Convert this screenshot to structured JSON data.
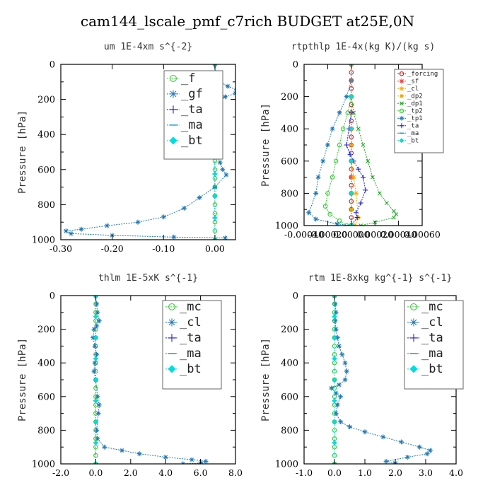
{
  "title": "cam144_lscale_pmf_c7rich  BUDGET at25E,0N",
  "chart_data": [
    {
      "type": "line",
      "title": "um  1E-4xm s^{-2}",
      "ylabel": "Pressure [hPa]",
      "xlim": [
        -0.3,
        0.04
      ],
      "ylim": [
        1000,
        0
      ],
      "xticks": [
        "-0.30",
        "-0.20",
        "-0.10",
        "0.00"
      ],
      "xtick_values": [
        -0.3,
        -0.2,
        -0.1,
        0.0
      ],
      "yticks": [
        "0",
        "200",
        "400",
        "600",
        "800",
        "1000"
      ],
      "legend_position": "top-right",
      "series": [
        {
          "name": "_f",
          "color": "#33cc33",
          "marker": "circle",
          "x": [
            0.0,
            0.0,
            0.0,
            0.0,
            0.0,
            0.0,
            0.0,
            0.0,
            0.0,
            0.0,
            0.0,
            0.0,
            0.0,
            0.0,
            0.0,
            0.0,
            0.0,
            0.0,
            0.0,
            0.0,
            0.0
          ],
          "y": [
            0,
            50,
            100,
            150,
            200,
            250,
            300,
            350,
            400,
            450,
            500,
            550,
            600,
            650,
            700,
            750,
            800,
            850,
            900,
            950,
            1000
          ]
        },
        {
          "name": "_gf",
          "color": "#1f77b4",
          "marker": "star",
          "x": [
            0.0,
            0.002,
            0.01,
            0.025,
            0.042,
            0.04,
            0.02,
            0.005,
            -0.015,
            -0.012,
            -0.008,
            -0.004,
            0.002,
            0.01,
            0.015,
            0.022,
            0.0,
            -0.03,
            -0.06,
            -0.1,
            -0.15,
            -0.21,
            -0.26,
            -0.29,
            -0.28,
            -0.2,
            -0.08,
            0.02
          ],
          "y": [
            0,
            50,
            100,
            125,
            145,
            165,
            185,
            205,
            230,
            290,
            350,
            420,
            490,
            560,
            600,
            630,
            700,
            760,
            820,
            870,
            900,
            920,
            940,
            950,
            965,
            975,
            985,
            990
          ]
        },
        {
          "name": "_ta",
          "color": "#2222cc",
          "marker": "plus",
          "x": [
            0.0,
            0.0,
            0.0,
            0.0,
            0.0,
            0.0,
            0.0,
            0.0,
            0.0
          ],
          "y": [
            0,
            125,
            250,
            375,
            500,
            625,
            750,
            875,
            1000
          ]
        },
        {
          "name": "_ma",
          "color": "#1199cc",
          "marker": "dash",
          "x": [
            0.0,
            0.0,
            0.0,
            0.0,
            0.0,
            0.0,
            0.0,
            0.0,
            0.0
          ],
          "y": [
            0,
            125,
            250,
            375,
            500,
            625,
            750,
            875,
            1000
          ]
        },
        {
          "name": "_bt",
          "color": "#00dddd",
          "marker": "diamond",
          "x": [
            0.0,
            0.0,
            0.0,
            0.0,
            0.0,
            0.0,
            0.0,
            0.0,
            0.0
          ],
          "y": [
            0,
            125,
            250,
            375,
            500,
            625,
            750,
            875,
            1000
          ]
        }
      ]
    },
    {
      "type": "line",
      "title": "rtpthlp  1E-4x(kg K)/(kg s)",
      "ylabel": "Pressure [hPa]",
      "xlim": [
        -0.0004,
        0.0006
      ],
      "ylim": [
        1000,
        0
      ],
      "xticks": [
        "-0.00040",
        "-0.00020",
        "0.00000",
        "0.00020",
        "0.00040",
        "0.00060"
      ],
      "xtick_values": [
        -0.0004,
        -0.0002,
        0.0,
        0.0002,
        0.0004,
        0.0006
      ],
      "yticks": [
        "0",
        "200",
        "400",
        "600",
        "800",
        "1000"
      ],
      "legend_position": "top-right",
      "series": [
        {
          "name": "_forcing",
          "color": "#cc2222",
          "marker": "circle",
          "x": [
            0.0,
            0.0,
            0.0,
            0.0,
            0.0,
            0.0,
            0.0,
            0.0,
            0.0,
            0.0,
            0.0,
            0.0,
            0.0,
            0.0,
            0.0,
            0.0,
            0.0,
            0.0,
            0.0,
            0.0,
            0.0
          ],
          "y": [
            0,
            50,
            100,
            150,
            200,
            250,
            300,
            350,
            400,
            450,
            500,
            550,
            600,
            650,
            700,
            750,
            800,
            850,
            900,
            950,
            1000
          ]
        },
        {
          "name": "_sf",
          "color": "#ff3333",
          "marker": "star",
          "x": [
            0.0,
            0.0,
            0.0,
            0.0,
            0.0,
            0.0,
            0.0,
            0.0,
            0.0,
            0.0,
            0.0
          ],
          "y": [
            0,
            100,
            200,
            300,
            400,
            500,
            600,
            700,
            800,
            900,
            1000
          ]
        },
        {
          "name": "_cl",
          "color": "#ffaa00",
          "marker": "star",
          "x": [
            0.0,
            0.0,
            0.0,
            0.0,
            0.0,
            0.0,
            0.0,
            2e-05,
            4e-05,
            6e-05,
            3e-05
          ],
          "y": [
            0,
            100,
            200,
            300,
            400,
            500,
            600,
            700,
            800,
            950,
            1000
          ]
        },
        {
          "name": "_dp2",
          "color": "#eeaa00",
          "marker": "square",
          "x": [
            0.0,
            0.0,
            0.0,
            0.0,
            0.0,
            0.0,
            0.0
          ],
          "y": [
            0,
            200,
            400,
            600,
            800,
            900,
            1000
          ]
        },
        {
          "name": "_dp1",
          "color": "#22aa22",
          "marker": "cross",
          "x": [
            0.0,
            2e-05,
            6e-05,
            0.0001,
            0.00014,
            0.00018,
            0.00024,
            0.0003,
            0.00036,
            0.00038,
            0.00036,
            0.0002,
            8e-05
          ],
          "y": [
            200,
            300,
            400,
            500,
            600,
            700,
            800,
            860,
            910,
            930,
            950,
            980,
            1000
          ]
        },
        {
          "name": "_tp2",
          "color": "#33cc33",
          "marker": "circle",
          "x": [
            0.0,
            -3e-05,
            -7e-05,
            -0.0001,
            -0.00013,
            -0.00016,
            -0.0002,
            -0.00022,
            -0.00018,
            -0.0001,
            -4e-05
          ],
          "y": [
            200,
            300,
            400,
            500,
            600,
            700,
            800,
            880,
            930,
            970,
            1000
          ]
        },
        {
          "name": "_tp1",
          "color": "#1f77b4",
          "marker": "star",
          "x": [
            0.0,
            -4e-05,
            -0.0001,
            -0.00016,
            -0.0002,
            -0.00024,
            -0.00028,
            -0.0003,
            -0.00036,
            -0.0003,
            -0.00012,
            0.0
          ],
          "y": [
            100,
            200,
            300,
            400,
            500,
            600,
            700,
            800,
            920,
            960,
            990,
            1000
          ]
        },
        {
          "name": "_ta",
          "color": "#2222cc",
          "marker": "plus",
          "x": [
            0.0,
            -2e-05,
            -4e-05,
            -1e-05,
            2e-05,
            6e-05,
            0.0001,
            0.00012,
            8e-05,
            4e-05,
            5e-05,
            0.0
          ],
          "y": [
            300,
            400,
            500,
            560,
            600,
            650,
            700,
            780,
            860,
            920,
            950,
            1000
          ]
        },
        {
          "name": "_ma",
          "color": "#1199cc",
          "marker": "dash",
          "x": [
            0.0,
            0.0,
            0.0,
            0.0,
            0.0,
            0.0
          ],
          "y": [
            0,
            200,
            400,
            600,
            800,
            1000
          ]
        },
        {
          "name": "_bt",
          "color": "#00dddd",
          "marker": "diamond",
          "x": [
            0.0,
            0.0,
            0.0,
            0.0,
            0.0,
            0.0
          ],
          "y": [
            0,
            200,
            400,
            600,
            800,
            1000
          ]
        }
      ]
    },
    {
      "type": "line",
      "title": "thlm  1E-5xK s^{-1}",
      "ylabel": "Pressure [hPa]",
      "xlim": [
        -2.0,
        8.0
      ],
      "ylim": [
        1000,
        0
      ],
      "xticks": [
        "-2.0",
        "0.0",
        "2.0",
        "4.0",
        "6.0",
        "8.0"
      ],
      "xtick_values": [
        -2,
        0,
        2,
        4,
        6,
        8
      ],
      "yticks": [
        "0",
        "200",
        "400",
        "600",
        "800",
        "1000"
      ],
      "legend_position": "top-right",
      "series": [
        {
          "name": "_mc",
          "color": "#33cc33",
          "marker": "circle",
          "x": [
            0.0,
            0.0,
            0.0,
            0.0,
            0.0,
            0.0,
            0.0,
            0.0,
            0.0,
            0.0,
            0.0,
            0.0,
            0.0,
            0.0,
            0.0,
            0.0,
            0.0,
            0.0,
            0.0,
            0.0,
            0.0
          ],
          "y": [
            0,
            50,
            100,
            150,
            200,
            250,
            300,
            350,
            400,
            450,
            500,
            550,
            600,
            650,
            700,
            750,
            800,
            850,
            900,
            950,
            1000
          ]
        },
        {
          "name": "_cl",
          "color": "#1f77b4",
          "marker": "star",
          "x": [
            0.0,
            0.05,
            0.1,
            0.2,
            0.05,
            -0.1,
            -0.15,
            -0.05,
            0.05,
            -0.05,
            -0.1,
            0.0,
            0.1,
            0.2,
            0.15,
            0.05,
            0.1,
            0.5,
            1.5,
            2.5,
            4.0,
            5.5,
            6.3,
            6.0,
            5.0
          ],
          "y": [
            0,
            50,
            100,
            150,
            180,
            200,
            250,
            300,
            350,
            400,
            450,
            500,
            600,
            650,
            700,
            800,
            850,
            900,
            920,
            940,
            960,
            975,
            985,
            995,
            1000
          ]
        },
        {
          "name": "_ta",
          "color": "#2222cc",
          "marker": "plus",
          "x": [
            0.0,
            0.0,
            0.0,
            0.0,
            0.0,
            0.0,
            0.0,
            0.0,
            0.0
          ],
          "y": [
            0,
            125,
            250,
            375,
            500,
            625,
            750,
            875,
            1000
          ]
        },
        {
          "name": "_ma",
          "color": "#1199cc",
          "marker": "dash",
          "x": [
            0.0,
            0.0,
            0.0,
            0.0,
            0.0,
            0.0,
            0.0,
            0.0,
            0.0
          ],
          "y": [
            0,
            125,
            250,
            375,
            500,
            625,
            750,
            875,
            1000
          ]
        },
        {
          "name": "_bt",
          "color": "#00dddd",
          "marker": "diamond",
          "x": [
            0.0,
            0.0,
            0.0,
            0.0,
            0.0,
            0.0,
            0.0,
            0.0,
            0.0
          ],
          "y": [
            0,
            125,
            250,
            375,
            500,
            625,
            750,
            875,
            1000
          ]
        }
      ]
    },
    {
      "type": "line",
      "title": "rtm  1E-8xkg kg^{-1} s^{-1}",
      "ylabel": "Pressure [hPa]",
      "xlim": [
        -1.0,
        4.0
      ],
      "ylim": [
        1000,
        0
      ],
      "xticks": [
        "-1.0",
        "0.0",
        "1.0",
        "2.0",
        "3.0",
        "4.0"
      ],
      "xtick_values": [
        -1,
        0,
        1,
        2,
        3,
        4
      ],
      "yticks": [
        "0",
        "200",
        "400",
        "600",
        "800",
        "1000"
      ],
      "legend_position": "top-right",
      "series": [
        {
          "name": "_mc",
          "color": "#33cc33",
          "marker": "circle",
          "x": [
            0.0,
            0.0,
            0.0,
            0.0,
            0.0,
            0.0,
            0.0,
            0.0,
            0.0,
            0.0,
            0.0,
            0.0,
            0.0,
            0.0,
            0.0,
            0.0,
            0.0,
            0.0,
            0.0,
            0.0,
            0.0
          ],
          "y": [
            0,
            50,
            100,
            150,
            200,
            250,
            300,
            350,
            400,
            450,
            500,
            550,
            600,
            650,
            700,
            750,
            800,
            850,
            900,
            950,
            1000
          ]
        },
        {
          "name": "_cl",
          "color": "#1f77b4",
          "marker": "star",
          "x": [
            0.0,
            0.02,
            0.05,
            0.02,
            0.05,
            0.1,
            0.15,
            0.25,
            0.35,
            0.4,
            0.35,
            0.15,
            -0.1,
            0.05,
            0.2,
            0.1,
            0.05,
            0.2,
            0.5,
            1.0,
            1.6,
            2.2,
            2.8,
            3.15,
            3.05,
            2.4,
            1.7,
            2.0
          ],
          "y": [
            0,
            50,
            100,
            150,
            200,
            250,
            300,
            350,
            400,
            450,
            500,
            530,
            550,
            580,
            600,
            650,
            700,
            750,
            780,
            810,
            840,
            870,
            900,
            920,
            940,
            960,
            985,
            995
          ]
        },
        {
          "name": "_ta",
          "color": "#2222cc",
          "marker": "plus",
          "x": [
            0.0,
            0.0,
            0.0,
            0.0,
            0.0,
            0.0,
            0.0,
            0.0,
            0.0
          ],
          "y": [
            0,
            125,
            250,
            375,
            500,
            625,
            750,
            875,
            1000
          ]
        },
        {
          "name": "_ma",
          "color": "#1199cc",
          "marker": "dash",
          "x": [
            0.0,
            0.0,
            0.0,
            0.0,
            0.0,
            0.0,
            0.0,
            0.0,
            0.0
          ],
          "y": [
            0,
            125,
            250,
            375,
            500,
            625,
            750,
            875,
            1000
          ]
        },
        {
          "name": "_bt",
          "color": "#00dddd",
          "marker": "diamond",
          "x": [
            0.0,
            0.0,
            0.0,
            0.0,
            0.0,
            0.0,
            0.0,
            0.0,
            0.0
          ],
          "y": [
            0,
            125,
            250,
            375,
            500,
            625,
            750,
            875,
            1000
          ]
        }
      ]
    }
  ]
}
